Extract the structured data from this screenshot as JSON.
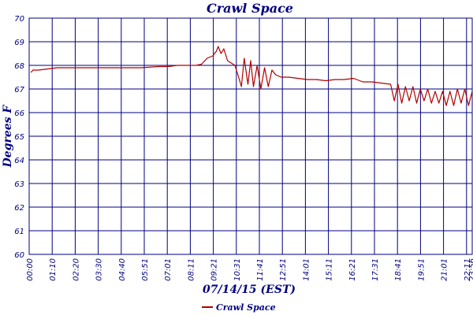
{
  "chart_data": {
    "type": "line",
    "title": "Crawl Space",
    "xlabel": "07/14/15 (EST)",
    "ylabel": "Degrees F",
    "ylim": [
      60,
      70
    ],
    "yticks": [
      "60",
      "61",
      "62",
      "63",
      "64",
      "65",
      "66",
      "67",
      "68",
      "69",
      "70"
    ],
    "xlim_hours": [
      0,
      23.9
    ],
    "xticks": [
      "00:00",
      "01:10",
      "02:20",
      "03:30",
      "04:40",
      "05:51",
      "07:01",
      "08:11",
      "09:21",
      "10:31",
      "11:41",
      "12:51",
      "14:01",
      "15:11",
      "16:21",
      "17:31",
      "18:41",
      "19:51",
      "21:01",
      "22:11",
      "23:21",
      "23:56"
    ],
    "grid": true,
    "legend_position": "bottom",
    "series": [
      {
        "name": "Crawl Space",
        "color": "#b00000",
        "x_hours": [
          0.1,
          0.2,
          0.5,
          1.0,
          1.5,
          2.0,
          2.5,
          3.0,
          4.0,
          5.0,
          6.0,
          7.0,
          7.5,
          8.0,
          8.5,
          9.0,
          9.3,
          9.6,
          9.9,
          10.1,
          10.2,
          10.35,
          10.5,
          10.7,
          10.9,
          11.1,
          11.3,
          11.45,
          11.6,
          11.8,
          11.95,
          12.1,
          12.3,
          12.5,
          12.7,
          12.9,
          13.1,
          13.3,
          13.6,
          14.0,
          14.5,
          15.0,
          15.5,
          16.0,
          16.5,
          17.0,
          17.5,
          18.0,
          18.5,
          19.0,
          19.5,
          19.7,
          19.9,
          20.1,
          20.3,
          20.5,
          20.7,
          20.9,
          21.1,
          21.3,
          21.5,
          21.7,
          21.9,
          22.1,
          22.3,
          22.5,
          22.7,
          22.9,
          23.1,
          23.3,
          23.5,
          23.7,
          23.9
        ],
        "values": [
          67.7,
          67.8,
          67.8,
          67.85,
          67.9,
          67.9,
          67.9,
          67.9,
          67.9,
          67.9,
          67.9,
          67.95,
          67.95,
          68.0,
          68.0,
          68.0,
          68.05,
          68.3,
          68.4,
          68.6,
          68.8,
          68.5,
          68.7,
          68.2,
          68.1,
          68.0,
          67.5,
          67.1,
          68.3,
          67.2,
          68.2,
          67.1,
          68.0,
          67.0,
          67.9,
          67.1,
          67.8,
          67.6,
          67.5,
          67.5,
          67.45,
          67.4,
          67.4,
          67.35,
          67.4,
          67.4,
          67.45,
          67.3,
          67.3,
          67.25,
          67.2,
          66.5,
          67.2,
          66.4,
          67.1,
          66.5,
          67.1,
          66.4,
          67.0,
          66.5,
          67.0,
          66.4,
          66.9,
          66.4,
          66.9,
          66.3,
          66.9,
          66.3,
          67.0,
          66.4,
          67.0,
          66.3,
          66.9
        ]
      }
    ]
  }
}
